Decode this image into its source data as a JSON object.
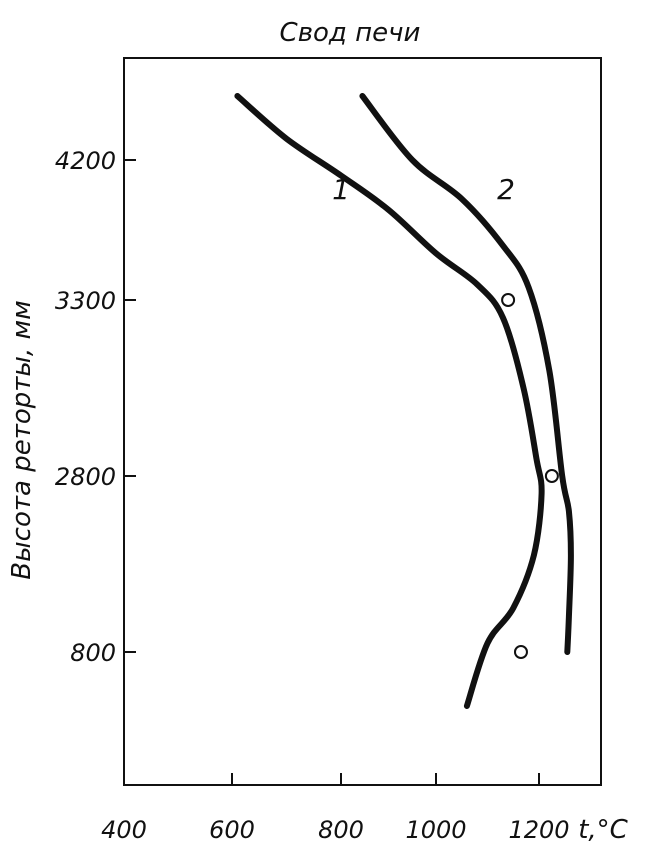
{
  "chart_data": {
    "type": "line",
    "title": "Свод печи",
    "xlabel": "t,°C",
    "ylabel": "Высота реторты, мм",
    "x_ticks": [
      "400",
      "600",
      "800",
      "1000",
      "1200"
    ],
    "y_ticks": [
      "4200",
      "3300",
      "2800",
      "800"
    ],
    "xlim": [
      400,
      1250
    ],
    "grid": false,
    "series": [
      {
        "name": "1",
        "points": [
          [
            610,
            4380
          ],
          [
            700,
            4260
          ],
          [
            800,
            4100
          ],
          [
            900,
            3880
          ],
          [
            1000,
            3600
          ],
          [
            1080,
            3400
          ],
          [
            1130,
            3250
          ],
          [
            1170,
            3050
          ],
          [
            1195,
            2850
          ],
          [
            1205,
            2600
          ],
          [
            1190,
            1900
          ],
          [
            1150,
            1300
          ],
          [
            1100,
            900
          ],
          [
            1060,
            640
          ]
        ]
      },
      {
        "name": "2",
        "points": [
          [
            845,
            4380
          ],
          [
            950,
            4200
          ],
          [
            1050,
            3950
          ],
          [
            1130,
            3650
          ],
          [
            1180,
            3380
          ],
          [
            1220,
            3100
          ],
          [
            1245,
            2800
          ],
          [
            1258,
            2400
          ],
          [
            1262,
            1900
          ],
          [
            1258,
            1200
          ],
          [
            1255,
            800
          ]
        ]
      }
    ],
    "markers": [
      {
        "x": 1140,
        "y": 3300
      },
      {
        "x": 1225,
        "y": 2800
      },
      {
        "x": 1165,
        "y": 800
      }
    ]
  }
}
